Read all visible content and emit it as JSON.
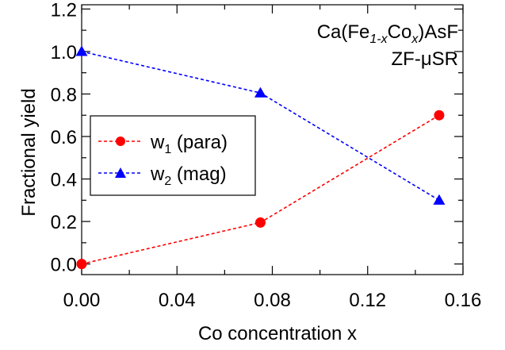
{
  "chart_data": {
    "type": "line",
    "xlabel": "Co concentration x",
    "ylabel": "Fractional yield",
    "xlim": [
      0.0,
      0.16
    ],
    "ylim": [
      -0.05,
      1.22
    ],
    "xticks": [
      "0.00",
      "0.04",
      "0.08",
      "0.12",
      "0.16"
    ],
    "xtick_values": [
      0.0,
      0.04,
      0.08,
      0.12,
      0.16
    ],
    "yticks": [
      "0.0",
      "0.2",
      "0.4",
      "0.6",
      "0.8",
      "1.0",
      "1.2"
    ],
    "ytick_values": [
      0.0,
      0.2,
      0.4,
      0.6,
      0.8,
      1.0,
      1.2
    ],
    "annotation": {
      "line1_pre": "Ca(Fe",
      "line1_sub1": "1-x",
      "line1_mid": "Co",
      "line1_sub2": "x",
      "line1_post": ")AsF",
      "line2": "ZF-μSR"
    },
    "legend_position": "center-left",
    "series": [
      {
        "name": "w1 (para)",
        "legend_pre": "w",
        "legend_sub": "1",
        "legend_post": " (para)",
        "color": "#ff0000",
        "marker": "circle",
        "x": [
          0.0,
          0.075,
          0.15
        ],
        "y": [
          0.0,
          0.195,
          0.7
        ]
      },
      {
        "name": "w2 (mag)",
        "legend_pre": "w",
        "legend_sub": "2",
        "legend_post": " (mag)",
        "color": "#0000ff",
        "marker": "triangle",
        "x": [
          0.0,
          0.075,
          0.15
        ],
        "y": [
          1.0,
          0.805,
          0.3
        ]
      }
    ]
  }
}
